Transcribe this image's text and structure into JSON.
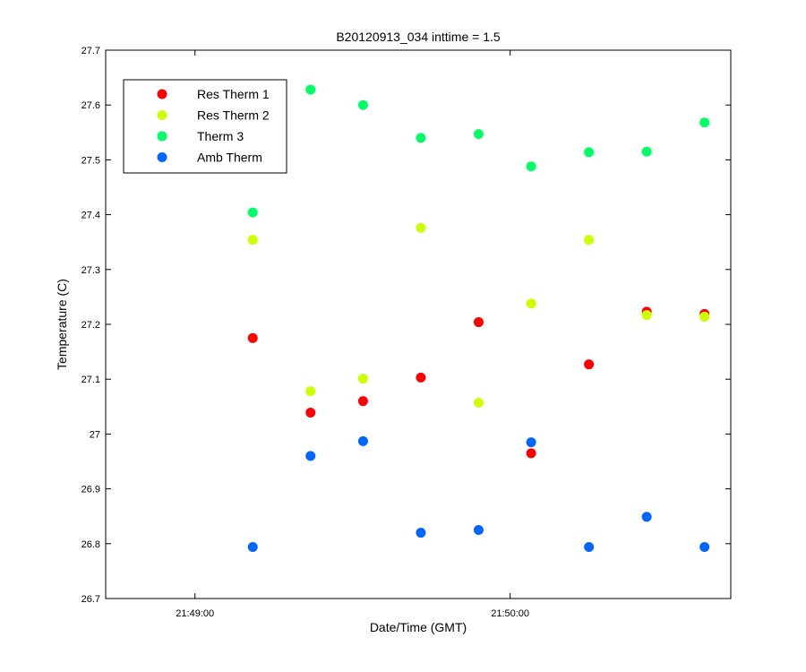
{
  "chart_data": {
    "type": "scatter",
    "title": "B20120913_034 inttime = 1.5",
    "xlabel": "Date/Time (GMT)",
    "ylabel": "Temperature (C)",
    "xlim": [
      "21:48:43",
      "21:50:42"
    ],
    "ylim": [
      26.7,
      27.7
    ],
    "x_ticks": [
      "21:49:00",
      "21:50:00"
    ],
    "y_ticks": [
      "26.7",
      "26.8",
      "26.9",
      "27",
      "27.1",
      "27.2",
      "27.3",
      "27.4",
      "27.5",
      "27.6",
      "27.7"
    ],
    "grid": false,
    "legend_position": "top-left",
    "x": [
      "21:49:11",
      "21:49:22",
      "21:49:32",
      "21:49:43",
      "21:49:54",
      "21:50:04",
      "21:50:15",
      "21:50:26",
      "21:50:37"
    ],
    "series": [
      {
        "name": "Res Therm 1",
        "color": "#ff0000",
        "values": [
          27.175,
          27.039,
          27.06,
          27.103,
          27.204,
          26.965,
          27.127,
          27.223,
          27.219
        ]
      },
      {
        "name": "Res Therm 2",
        "color": "#ccff00",
        "values": [
          27.354,
          27.078,
          27.101,
          27.376,
          27.057,
          27.238,
          27.354,
          27.217,
          27.214
        ]
      },
      {
        "name": "Therm 3",
        "color": "#00ff66",
        "values": [
          27.404,
          27.628,
          27.6,
          27.54,
          27.547,
          27.488,
          27.514,
          27.515,
          27.568
        ]
      },
      {
        "name": "Amb Therm",
        "color": "#0066ff",
        "values": [
          26.794,
          26.96,
          26.987,
          26.82,
          26.825,
          26.985,
          26.794,
          26.849,
          26.794
        ]
      }
    ]
  }
}
